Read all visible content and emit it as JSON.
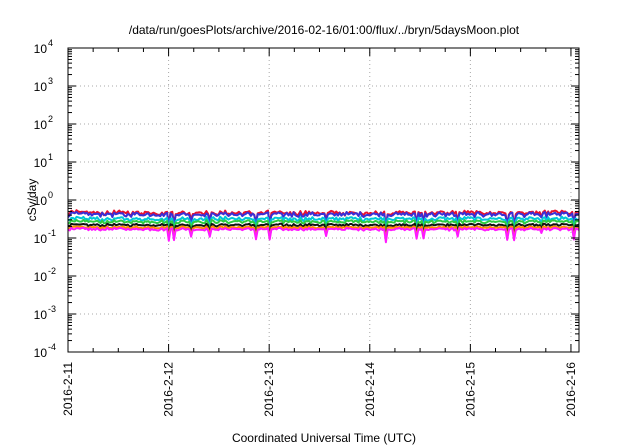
{
  "chart_data": {
    "type": "line",
    "title": "/data/run/goesPlots/archive/2016-02-16/01:00/flux/../bryn/5daysMoon.plot",
    "xlabel": "Coordinated Universal Time (UTC)",
    "ylabel": "cSv/day",
    "yscale": "log",
    "ylim": [
      0.0001,
      10000
    ],
    "xlim": [
      0,
      5.08
    ],
    "grid": true,
    "x_ticks": [
      {
        "pos": 0,
        "label": "2016-2-11"
      },
      {
        "pos": 1,
        "label": "2016-2-12"
      },
      {
        "pos": 2,
        "label": "2016-2-13"
      },
      {
        "pos": 3,
        "label": "2016-2-14"
      },
      {
        "pos": 4,
        "label": "2016-2-15"
      },
      {
        "pos": 5,
        "label": "2016-2-16"
      }
    ],
    "y_ticks": [
      {
        "value": 0.0001,
        "base": "10",
        "exp": "-4"
      },
      {
        "value": 0.001,
        "base": "10",
        "exp": "-3"
      },
      {
        "value": 0.01,
        "base": "10",
        "exp": "-2"
      },
      {
        "value": 0.1,
        "base": "10",
        "exp": "-1"
      },
      {
        "value": 1,
        "base": "10",
        "exp": "0"
      },
      {
        "value": 10,
        "base": "10",
        "exp": "1"
      },
      {
        "value": 100,
        "base": "10",
        "exp": "2"
      },
      {
        "value": 1000,
        "base": "10",
        "exp": "3"
      },
      {
        "value": 10000,
        "base": "10",
        "exp": "4"
      }
    ],
    "series": [
      {
        "color": "#e8102e",
        "base": 0.46,
        "amp": 0.22
      },
      {
        "color": "#3a2fd6",
        "base": 0.42,
        "amp": 0.22
      },
      {
        "color": "#00c8d8",
        "base": 0.32,
        "amp": 0.18
      },
      {
        "color": "#2ecc40",
        "base": 0.27,
        "amp": 0.15
      },
      {
        "color": "#111111",
        "base": 0.22,
        "amp": 0.12
      },
      {
        "color": "#ff8c00",
        "base": 0.19,
        "amp": 0.1
      },
      {
        "color": "#ff1aff",
        "base": 0.17,
        "amp": 0.12
      }
    ]
  }
}
